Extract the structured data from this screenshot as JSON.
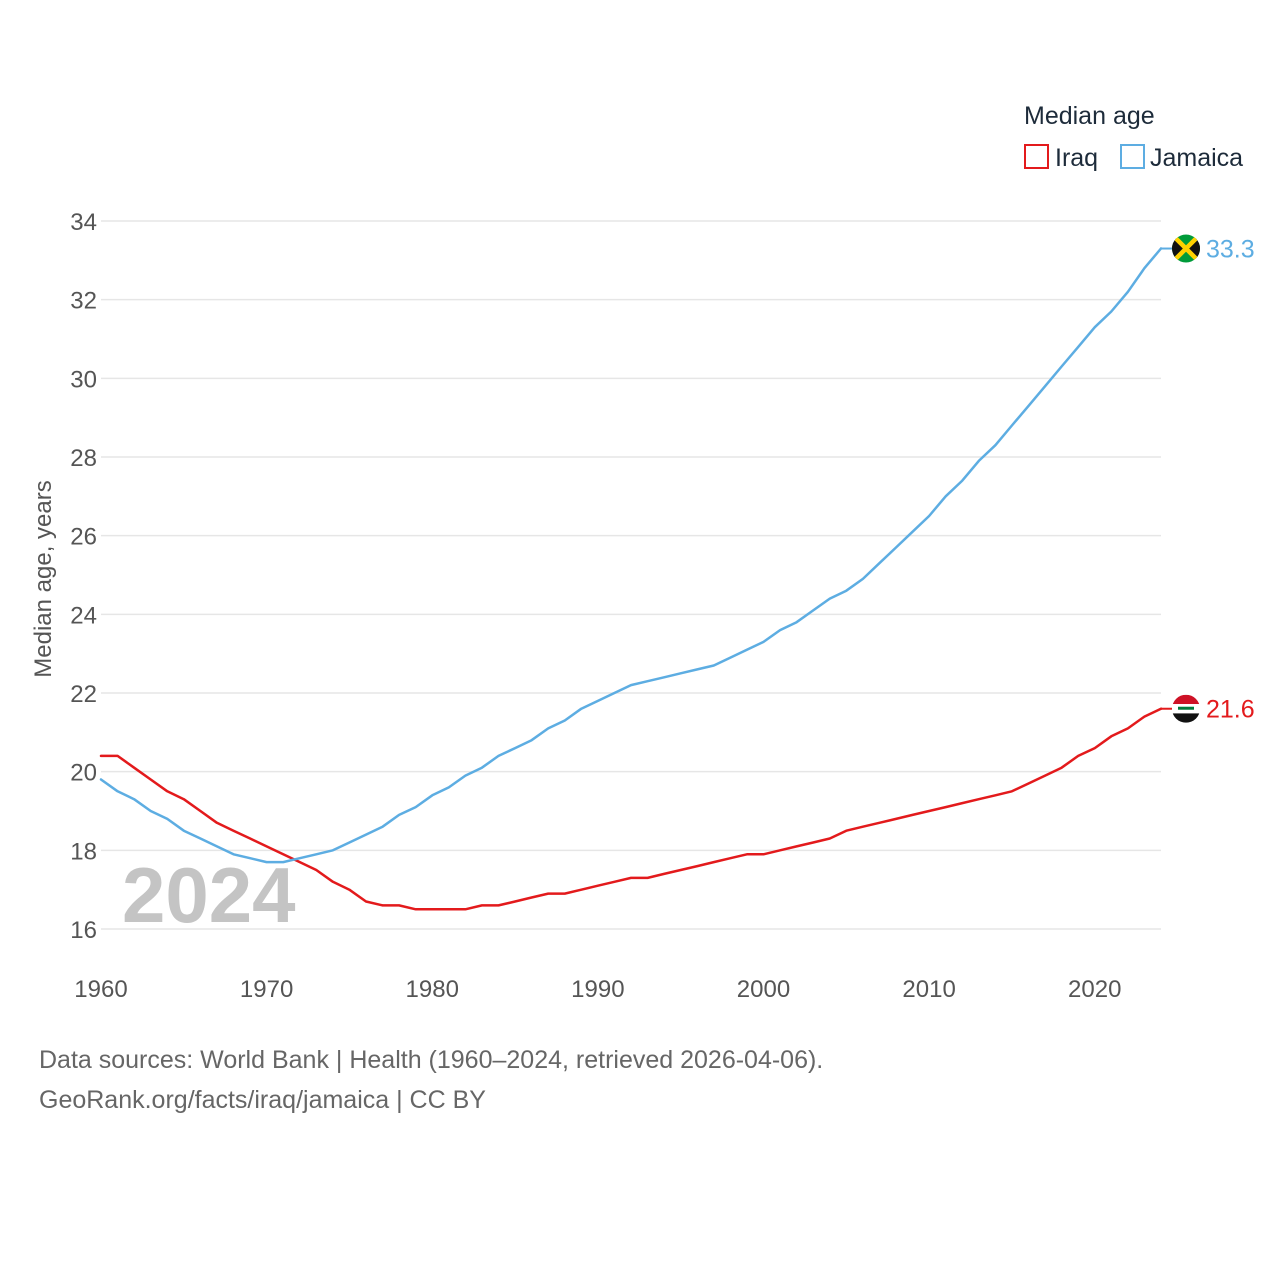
{
  "chart_data": {
    "type": "line",
    "ylabel": "Median age, years",
    "xlim": [
      1960,
      2024
    ],
    "ylim": [
      15.6,
      34.2
    ],
    "xticks": [
      1960,
      1970,
      1980,
      1990,
      2000,
      2010,
      2020
    ],
    "yticks": [
      16,
      18,
      20,
      22,
      24,
      26,
      28,
      30,
      32,
      34
    ],
    "grid": true,
    "legend": {
      "title": "Median age",
      "placement": "top-right"
    },
    "annotation_year": "2024",
    "x": [
      1960,
      1961,
      1962,
      1963,
      1964,
      1965,
      1966,
      1967,
      1968,
      1969,
      1970,
      1971,
      1972,
      1973,
      1974,
      1975,
      1976,
      1977,
      1978,
      1979,
      1980,
      1981,
      1982,
      1983,
      1984,
      1985,
      1986,
      1987,
      1988,
      1989,
      1990,
      1991,
      1992,
      1993,
      1994,
      1995,
      1996,
      1997,
      1998,
      1999,
      2000,
      2001,
      2002,
      2003,
      2004,
      2005,
      2006,
      2007,
      2008,
      2009,
      2010,
      2011,
      2012,
      2013,
      2014,
      2015,
      2016,
      2017,
      2018,
      2019,
      2020,
      2021,
      2022,
      2023,
      2024
    ],
    "series": [
      {
        "name": "Iraq",
        "color": "#e31a1c",
        "flag": "iraq-flag",
        "end_label": "21.6",
        "values": [
          20.4,
          20.4,
          20.1,
          19.8,
          19.5,
          19.3,
          19.0,
          18.7,
          18.5,
          18.3,
          18.1,
          17.9,
          17.7,
          17.5,
          17.2,
          17.0,
          16.7,
          16.6,
          16.6,
          16.5,
          16.5,
          16.5,
          16.5,
          16.6,
          16.6,
          16.7,
          16.8,
          16.9,
          16.9,
          17.0,
          17.1,
          17.2,
          17.3,
          17.3,
          17.4,
          17.5,
          17.6,
          17.7,
          17.8,
          17.9,
          17.9,
          18.0,
          18.1,
          18.2,
          18.3,
          18.5,
          18.6,
          18.7,
          18.8,
          18.9,
          19.0,
          19.1,
          19.2,
          19.3,
          19.4,
          19.5,
          19.7,
          19.9,
          20.1,
          20.4,
          20.6,
          20.9,
          21.1,
          21.4,
          21.6
        ]
      },
      {
        "name": "Jamaica",
        "color": "#5dade2",
        "flag": "jamaica-flag",
        "end_label": "33.3",
        "values": [
          19.8,
          19.5,
          19.3,
          19.0,
          18.8,
          18.5,
          18.3,
          18.1,
          17.9,
          17.8,
          17.7,
          17.7,
          17.8,
          17.9,
          18.0,
          18.2,
          18.4,
          18.6,
          18.9,
          19.1,
          19.4,
          19.6,
          19.9,
          20.1,
          20.4,
          20.6,
          20.8,
          21.1,
          21.3,
          21.6,
          21.8,
          22.0,
          22.2,
          22.3,
          22.4,
          22.5,
          22.6,
          22.7,
          22.9,
          23.1,
          23.3,
          23.6,
          23.8,
          24.1,
          24.4,
          24.6,
          24.9,
          25.3,
          25.7,
          26.1,
          26.5,
          27.0,
          27.4,
          27.9,
          28.3,
          28.8,
          29.3,
          29.8,
          30.3,
          30.8,
          31.3,
          31.7,
          32.2,
          32.8,
          33.3
        ]
      }
    ]
  },
  "footer": {
    "line1": "Data sources: World Bank | Health (1960–2024, retrieved 2026-04-06).",
    "line2": "GeoRank.org/facts/iraq/jamaica | CC BY"
  }
}
